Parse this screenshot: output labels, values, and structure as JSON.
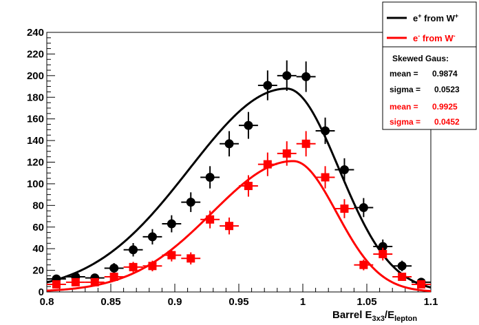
{
  "chart_data": {
    "type": "scatter",
    "xlim": [
      0.8,
      1.1
    ],
    "ylim": [
      0,
      240
    ],
    "xticks": [
      "0.8",
      "0.85",
      "0.9",
      "0.95",
      "1",
      "1.05",
      "1.1"
    ],
    "yticks": [
      "0",
      "20",
      "40",
      "60",
      "80",
      "100",
      "120",
      "140",
      "160",
      "180",
      "200",
      "220",
      "240"
    ],
    "xlabel_main": "Barrel E",
    "xlabel_sub1": "3x3",
    "xlabel_mid": "/E",
    "xlabel_sub2": "lepton",
    "grid": false,
    "legend_position": "top-right",
    "series": [
      {
        "name_main": "e",
        "name_sup": "+",
        "name_rest": " from W",
        "name_sup2": "+",
        "color": "#000000",
        "marker": "circle",
        "x_err": 0.0075,
        "points": [
          {
            "x": 0.8075,
            "y": 12,
            "e": 3.5
          },
          {
            "x": 0.8225,
            "y": 14,
            "e": 3.7
          },
          {
            "x": 0.8375,
            "y": 13,
            "e": 3.6
          },
          {
            "x": 0.8525,
            "y": 22,
            "e": 4.7
          },
          {
            "x": 0.8675,
            "y": 39,
            "e": 6.2
          },
          {
            "x": 0.8825,
            "y": 51,
            "e": 7.1
          },
          {
            "x": 0.8975,
            "y": 63,
            "e": 7.9
          },
          {
            "x": 0.9125,
            "y": 83,
            "e": 9.1
          },
          {
            "x": 0.9275,
            "y": 106,
            "e": 10.3
          },
          {
            "x": 0.9425,
            "y": 137,
            "e": 11.7
          },
          {
            "x": 0.9575,
            "y": 154,
            "e": 12.4
          },
          {
            "x": 0.9725,
            "y": 191,
            "e": 13.8
          },
          {
            "x": 0.9875,
            "y": 200,
            "e": 14.1
          },
          {
            "x": 1.0025,
            "y": 199,
            "e": 14.1
          },
          {
            "x": 1.0175,
            "y": 149,
            "e": 12.2
          },
          {
            "x": 1.0325,
            "y": 113,
            "e": 10.6
          },
          {
            "x": 1.0475,
            "y": 78,
            "e": 8.8
          },
          {
            "x": 1.0625,
            "y": 42,
            "e": 6.5
          },
          {
            "x": 1.0775,
            "y": 24,
            "e": 4.9
          },
          {
            "x": 1.0925,
            "y": 9,
            "e": 3.0
          }
        ],
        "fit": {
          "mean": 0.9874,
          "sigma": 0.0523,
          "amplitude": 188,
          "skew_left": 1.45,
          "skew_right": 0.78
        }
      },
      {
        "name_main": "e",
        "name_sup": "-",
        "name_rest": " from W",
        "name_sup2": "-",
        "color": "#ff0000",
        "marker": "square",
        "x_err": 0.0075,
        "points": [
          {
            "x": 0.8075,
            "y": 7,
            "e": 2.6
          },
          {
            "x": 0.8225,
            "y": 9,
            "e": 3.0
          },
          {
            "x": 0.8375,
            "y": 9,
            "e": 3.0
          },
          {
            "x": 0.8525,
            "y": 14,
            "e": 3.7
          },
          {
            "x": 0.8675,
            "y": 23,
            "e": 4.8
          },
          {
            "x": 0.8825,
            "y": 24,
            "e": 4.9
          },
          {
            "x": 0.8975,
            "y": 34,
            "e": 5.8
          },
          {
            "x": 0.9125,
            "y": 31,
            "e": 5.6
          },
          {
            "x": 0.9275,
            "y": 67,
            "e": 8.2
          },
          {
            "x": 0.9425,
            "y": 61,
            "e": 7.8
          },
          {
            "x": 0.9575,
            "y": 98,
            "e": 9.9
          },
          {
            "x": 0.9725,
            "y": 118,
            "e": 10.9
          },
          {
            "x": 0.9875,
            "y": 128,
            "e": 11.3
          },
          {
            "x": 1.0025,
            "y": 137,
            "e": 11.7
          },
          {
            "x": 1.0175,
            "y": 106,
            "e": 10.3
          },
          {
            "x": 1.0325,
            "y": 77,
            "e": 8.8
          },
          {
            "x": 1.0475,
            "y": 25,
            "e": 5.0
          },
          {
            "x": 1.0625,
            "y": 35,
            "e": 5.9
          },
          {
            "x": 1.0775,
            "y": 14,
            "e": 3.7
          },
          {
            "x": 1.0925,
            "y": 7,
            "e": 2.6
          }
        ],
        "fit": {
          "mean": 0.9925,
          "sigma": 0.0452,
          "amplitude": 121,
          "skew_left": 1.4,
          "skew_right": 0.75
        }
      }
    ]
  },
  "fit_box": {
    "title": "Skewed Gaus:",
    "rows": [
      {
        "label": "mean =",
        "value": "0.9874",
        "color": "#000000"
      },
      {
        "label": "sigma =",
        "value": "0.0523",
        "color": "#000000"
      },
      {
        "label": "mean =",
        "value": "0.9925",
        "color": "#ff0000"
      },
      {
        "label": "sigma =",
        "value": "0.0452",
        "color": "#ff0000"
      }
    ]
  }
}
